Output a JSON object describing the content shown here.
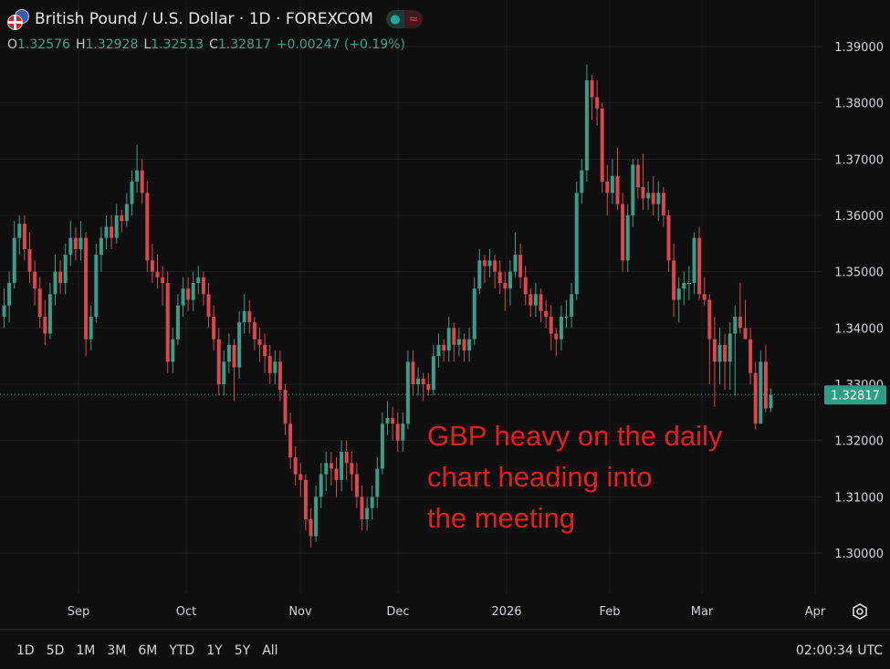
{
  "header": {
    "title": "British Pound / U.S. Dollar · 1D · FOREXCOM",
    "market_status_icon": "green-dot",
    "extra_icon": "≈"
  },
  "ohlc_bar": {
    "open_label": "O",
    "open": "1.32576",
    "high_label": "H",
    "high": "1.32928",
    "low_label": "L",
    "low": "1.32513",
    "close_label": "C",
    "close": "1.32817",
    "change": "+0.00247 (+0.19%)"
  },
  "annotation": [
    "GBP heavy on the daily",
    "chart heading into",
    "the meeting"
  ],
  "range_buttons": [
    "1D",
    "5D",
    "1M",
    "3M",
    "6M",
    "YTD",
    "1Y",
    "5Y",
    "All"
  ],
  "clock": "02:00:34 UTC",
  "colors": {
    "up": "#3d9c86",
    "down": "#d9474f",
    "background": "#0f0f0f",
    "annotation": "#e3201f",
    "last_price": "#2f9e85"
  },
  "chart_data": {
    "type": "candlestick",
    "symbol": "GBPUSD",
    "interval": "1D",
    "ylim": [
      1.295,
      1.392
    ],
    "y_ticks": [
      "1.39000",
      "1.38000",
      "1.37000",
      "1.36000",
      "1.35000",
      "1.34000",
      "1.33000",
      "1.32000",
      "1.31000",
      "1.30000"
    ],
    "x_ticks": [
      "Sep",
      "Oct",
      "Nov",
      "Dec",
      "2026",
      "Feb",
      "Mar",
      "Apr"
    ],
    "last_price": "1.32817",
    "grid": true,
    "ohlc": [
      [
        1.342,
        1.347,
        1.34,
        1.344
      ],
      [
        1.344,
        1.35,
        1.341,
        1.348
      ],
      [
        1.348,
        1.359,
        1.347,
        1.356
      ],
      [
        1.356,
        1.36,
        1.353,
        1.3585
      ],
      [
        1.3585,
        1.36,
        1.352,
        1.354
      ],
      [
        1.354,
        1.357,
        1.348,
        1.35
      ],
      [
        1.35,
        1.352,
        1.344,
        1.347
      ],
      [
        1.347,
        1.349,
        1.34,
        1.342
      ],
      [
        1.342,
        1.345,
        1.337,
        1.339
      ],
      [
        1.339,
        1.348,
        1.338,
        1.346
      ],
      [
        1.346,
        1.353,
        1.344,
        1.35
      ],
      [
        1.35,
        1.352,
        1.346,
        1.348
      ],
      [
        1.348,
        1.355,
        1.346,
        1.353
      ],
      [
        1.353,
        1.359,
        1.351,
        1.356
      ],
      [
        1.356,
        1.358,
        1.352,
        1.354
      ],
      [
        1.354,
        1.359,
        1.352,
        1.356
      ],
      [
        1.356,
        1.357,
        1.335,
        1.338
      ],
      [
        1.338,
        1.344,
        1.336,
        1.342
      ],
      [
        1.342,
        1.355,
        1.341,
        1.353
      ],
      [
        1.353,
        1.358,
        1.35,
        1.356
      ],
      [
        1.356,
        1.36,
        1.354,
        1.358
      ],
      [
        1.358,
        1.36,
        1.354,
        1.356
      ],
      [
        1.356,
        1.362,
        1.355,
        1.36
      ],
      [
        1.36,
        1.361,
        1.357,
        1.359
      ],
      [
        1.359,
        1.364,
        1.358,
        1.362
      ],
      [
        1.362,
        1.368,
        1.36,
        1.366
      ],
      [
        1.366,
        1.3725,
        1.364,
        1.368
      ],
      [
        1.368,
        1.37,
        1.362,
        1.364
      ],
      [
        1.364,
        1.366,
        1.35,
        1.352
      ],
      [
        1.352,
        1.355,
        1.348,
        1.35
      ],
      [
        1.35,
        1.353,
        1.347,
        1.349
      ],
      [
        1.349,
        1.351,
        1.344,
        1.348
      ],
      [
        1.348,
        1.35,
        1.332,
        1.334
      ],
      [
        1.334,
        1.34,
        1.332,
        1.338
      ],
      [
        1.338,
        1.346,
        1.337,
        1.344
      ],
      [
        1.344,
        1.349,
        1.342,
        1.347
      ],
      [
        1.347,
        1.349,
        1.343,
        1.345
      ],
      [
        1.345,
        1.35,
        1.343,
        1.348
      ],
      [
        1.348,
        1.351,
        1.346,
        1.349
      ],
      [
        1.349,
        1.35,
        1.344,
        1.346
      ],
      [
        1.346,
        1.348,
        1.34,
        1.342
      ],
      [
        1.342,
        1.344,
        1.336,
        1.338
      ],
      [
        1.338,
        1.34,
        1.328,
        1.33
      ],
      [
        1.33,
        1.336,
        1.328,
        1.334
      ],
      [
        1.334,
        1.339,
        1.332,
        1.337
      ],
      [
        1.337,
        1.338,
        1.327,
        1.333
      ],
      [
        1.333,
        1.343,
        1.331,
        1.341
      ],
      [
        1.341,
        1.346,
        1.339,
        1.343
      ],
      [
        1.343,
        1.345,
        1.339,
        1.341
      ],
      [
        1.341,
        1.342,
        1.336,
        1.338
      ],
      [
        1.338,
        1.34,
        1.334,
        1.337
      ],
      [
        1.337,
        1.339,
        1.332,
        1.335
      ],
      [
        1.335,
        1.337,
        1.33,
        1.332
      ],
      [
        1.332,
        1.336,
        1.33,
        1.334
      ],
      [
        1.334,
        1.336,
        1.327,
        1.329
      ],
      [
        1.329,
        1.33,
        1.321,
        1.323
      ],
      [
        1.323,
        1.325,
        1.315,
        1.317
      ],
      [
        1.317,
        1.319,
        1.312,
        1.314
      ],
      [
        1.314,
        1.316,
        1.31,
        1.313
      ],
      [
        1.313,
        1.314,
        1.304,
        1.306
      ],
      [
        1.306,
        1.308,
        1.301,
        1.303
      ],
      [
        1.303,
        1.312,
        1.302,
        1.31
      ],
      [
        1.31,
        1.316,
        1.308,
        1.314
      ],
      [
        1.314,
        1.318,
        1.311,
        1.316
      ],
      [
        1.316,
        1.318,
        1.312,
        1.315
      ],
      [
        1.315,
        1.317,
        1.31,
        1.313
      ],
      [
        1.313,
        1.32,
        1.311,
        1.318
      ],
      [
        1.318,
        1.32,
        1.313,
        1.316
      ],
      [
        1.316,
        1.318,
        1.311,
        1.314
      ],
      [
        1.314,
        1.316,
        1.308,
        1.31
      ],
      [
        1.31,
        1.312,
        1.304,
        1.306
      ],
      [
        1.306,
        1.31,
        1.304,
        1.308
      ],
      [
        1.308,
        1.312,
        1.306,
        1.31
      ],
      [
        1.31,
        1.317,
        1.308,
        1.315
      ],
      [
        1.315,
        1.325,
        1.314,
        1.323
      ],
      [
        1.323,
        1.327,
        1.321,
        1.324
      ],
      [
        1.324,
        1.326,
        1.32,
        1.323
      ],
      [
        1.323,
        1.325,
        1.318,
        1.32
      ],
      [
        1.32,
        1.325,
        1.318,
        1.323
      ],
      [
        1.323,
        1.336,
        1.322,
        1.334
      ],
      [
        1.334,
        1.336,
        1.328,
        1.33
      ],
      [
        1.33,
        1.333,
        1.328,
        1.331
      ],
      [
        1.331,
        1.332,
        1.327,
        1.33
      ],
      [
        1.33,
        1.332,
        1.328,
        1.329
      ],
      [
        1.329,
        1.337,
        1.328,
        1.335
      ],
      [
        1.335,
        1.339,
        1.333,
        1.337
      ],
      [
        1.337,
        1.338,
        1.334,
        1.336
      ],
      [
        1.336,
        1.342,
        1.334,
        1.34
      ],
      [
        1.34,
        1.341,
        1.334,
        1.337
      ],
      [
        1.337,
        1.34,
        1.335,
        1.338
      ],
      [
        1.338,
        1.339,
        1.334,
        1.336
      ],
      [
        1.336,
        1.34,
        1.334,
        1.338
      ],
      [
        1.338,
        1.349,
        1.337,
        1.347
      ],
      [
        1.347,
        1.354,
        1.346,
        1.352
      ],
      [
        1.352,
        1.353,
        1.348,
        1.351
      ],
      [
        1.351,
        1.354,
        1.349,
        1.352
      ],
      [
        1.352,
        1.353,
        1.347,
        1.35
      ],
      [
        1.35,
        1.352,
        1.346,
        1.348
      ],
      [
        1.348,
        1.35,
        1.343,
        1.347
      ],
      [
        1.347,
        1.352,
        1.344,
        1.35
      ],
      [
        1.35,
        1.357,
        1.349,
        1.353
      ],
      [
        1.353,
        1.355,
        1.347,
        1.349
      ],
      [
        1.349,
        1.351,
        1.344,
        1.346
      ],
      [
        1.346,
        1.347,
        1.342,
        1.344
      ],
      [
        1.344,
        1.348,
        1.342,
        1.346
      ],
      [
        1.346,
        1.347,
        1.341,
        1.343
      ],
      [
        1.343,
        1.345,
        1.34,
        1.342
      ],
      [
        1.342,
        1.344,
        1.336,
        1.339
      ],
      [
        1.339,
        1.34,
        1.335,
        1.338
      ],
      [
        1.338,
        1.344,
        1.336,
        1.342
      ],
      [
        1.342,
        1.345,
        1.34,
        1.342
      ],
      [
        1.342,
        1.348,
        1.34,
        1.346
      ],
      [
        1.346,
        1.366,
        1.345,
        1.364
      ],
      [
        1.364,
        1.37,
        1.362,
        1.368
      ],
      [
        1.368,
        1.3868,
        1.366,
        1.384
      ],
      [
        1.384,
        1.385,
        1.377,
        1.381
      ],
      [
        1.381,
        1.384,
        1.376,
        1.379
      ],
      [
        1.379,
        1.38,
        1.364,
        1.366
      ],
      [
        1.366,
        1.369,
        1.36,
        1.364
      ],
      [
        1.364,
        1.37,
        1.362,
        1.367
      ],
      [
        1.367,
        1.372,
        1.361,
        1.362
      ],
      [
        1.362,
        1.364,
        1.35,
        1.352
      ],
      [
        1.352,
        1.362,
        1.35,
        1.36
      ],
      [
        1.36,
        1.37,
        1.358,
        1.369
      ],
      [
        1.369,
        1.37,
        1.363,
        1.365
      ],
      [
        1.365,
        1.371,
        1.361,
        1.363
      ],
      [
        1.363,
        1.366,
        1.361,
        1.364
      ],
      [
        1.364,
        1.367,
        1.36,
        1.362
      ],
      [
        1.362,
        1.366,
        1.359,
        1.364
      ],
      [
        1.364,
        1.365,
        1.358,
        1.36
      ],
      [
        1.36,
        1.361,
        1.35,
        1.352
      ],
      [
        1.352,
        1.355,
        1.342,
        1.345
      ],
      [
        1.345,
        1.349,
        1.341,
        1.347
      ],
      [
        1.347,
        1.35,
        1.344,
        1.348
      ],
      [
        1.348,
        1.351,
        1.345,
        1.348
      ],
      [
        1.348,
        1.357,
        1.346,
        1.356
      ],
      [
        1.356,
        1.358,
        1.345,
        1.346
      ],
      [
        1.346,
        1.349,
        1.344,
        1.345
      ],
      [
        1.345,
        1.346,
        1.33,
        1.338
      ],
      [
        1.338,
        1.342,
        1.326,
        1.334
      ],
      [
        1.334,
        1.34,
        1.33,
        1.337
      ],
      [
        1.337,
        1.339,
        1.329,
        1.334
      ],
      [
        1.334,
        1.341,
        1.329,
        1.339
      ],
      [
        1.339,
        1.344,
        1.328,
        1.342
      ],
      [
        1.342,
        1.348,
        1.339,
        1.34
      ],
      [
        1.34,
        1.345,
        1.338,
        1.338
      ],
      [
        1.338,
        1.34,
        1.33,
        1.332
      ],
      [
        1.332,
        1.334,
        1.322,
        1.323
      ],
      [
        1.323,
        1.336,
        1.323,
        1.334
      ],
      [
        1.334,
        1.337,
        1.325,
        1.3257
      ],
      [
        1.32576,
        1.32928,
        1.32513,
        1.32817
      ]
    ]
  }
}
